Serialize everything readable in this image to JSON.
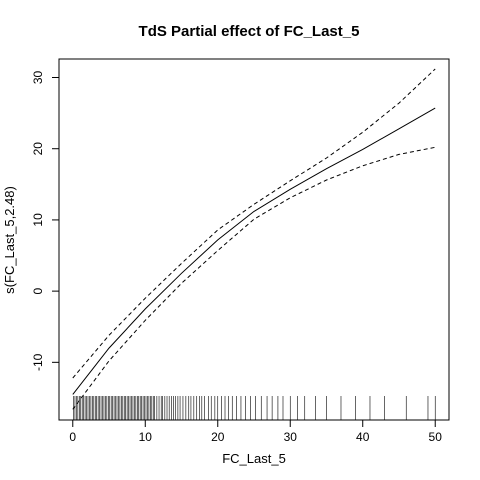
{
  "chart_data": {
    "type": "line",
    "title": "TdS Partial effect of FC_Last_5",
    "xlabel": "FC_Last_5",
    "ylabel": "s(FC_Last_5,2.48)",
    "xlim": [
      -1.9,
      51.9
    ],
    "ylim": [
      -18.1,
      32.6
    ],
    "x_ticks": [
      0,
      10,
      20,
      30,
      40,
      50
    ],
    "y_ticks": [
      -10,
      0,
      10,
      20,
      30
    ],
    "grid": false,
    "legend": "none",
    "series": [
      {
        "style": "solid",
        "color": "#000000",
        "x": [
          0,
          5,
          10,
          15,
          20,
          25,
          30,
          35,
          40,
          45,
          50
        ],
        "y": [
          -14.5,
          -8.0,
          -2.5,
          2.5,
          7.2,
          11.2,
          14.3,
          17.2,
          19.9,
          22.8,
          25.7
        ]
      },
      {
        "style": "dashed",
        "color": "#000000",
        "x": [
          0,
          5,
          10,
          15,
          20,
          25,
          30,
          35,
          40,
          45,
          50
        ],
        "y": [
          -12.2,
          -6.2,
          -1.0,
          3.9,
          8.6,
          12.2,
          15.5,
          18.7,
          22.3,
          26.4,
          31.2
        ]
      },
      {
        "style": "dashed",
        "color": "#000000",
        "x": [
          0,
          5,
          10,
          15,
          20,
          25,
          30,
          35,
          40,
          45,
          50
        ],
        "y": [
          -16.6,
          -9.8,
          -4.1,
          1.1,
          5.7,
          10.1,
          13.1,
          15.6,
          17.6,
          19.2,
          20.2
        ]
      }
    ],
    "rug": [
      0.1,
      0.3,
      0.5,
      0.7,
      0.9,
      1.1,
      1.3,
      1.5,
      1.7,
      1.9,
      2.1,
      2.3,
      2.5,
      2.7,
      2.9,
      3.1,
      3.3,
      3.5,
      3.7,
      3.9,
      4.1,
      4.3,
      4.5,
      4.7,
      4.9,
      5.1,
      5.3,
      5.5,
      5.7,
      5.9,
      6.1,
      6.3,
      6.5,
      6.7,
      6.9,
      7.1,
      7.3,
      7.5,
      7.7,
      7.9,
      8.1,
      8.3,
      8.5,
      8.7,
      8.9,
      9.1,
      9.3,
      9.5,
      9.7,
      9.9,
      10.1,
      10.3,
      10.5,
      10.7,
      10.9,
      11.1,
      11.3,
      11.6,
      11.9,
      12.2,
      12.4,
      12.7,
      13.0,
      13.3,
      13.6,
      13.9,
      14.2,
      14.5,
      14.8,
      15.2,
      15.6,
      16.0,
      16.3,
      16.7,
      17.1,
      17.5,
      17.8,
      18.2,
      18.7,
      19.1,
      19.6,
      20.0,
      20.5,
      21.0,
      21.5,
      22.0,
      22.6,
      23.2,
      23.8,
      24.5,
      25.2,
      26.0,
      26.8,
      27.5,
      28.3,
      29.0,
      30.0,
      31.0,
      32.0,
      33.5,
      35.0,
      37.0,
      39.0,
      41.0,
      43.0,
      46.0,
      49.0,
      50.0
    ]
  }
}
